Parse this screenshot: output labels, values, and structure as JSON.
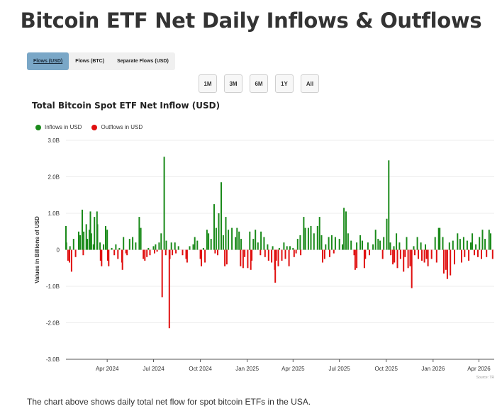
{
  "page": {
    "title": "Bitcoin ETF Net Daily Inflows & Outflows",
    "footer": "The chart above shows daily total net flow for spot bitcoin ETFs in the USA.",
    "source": "Source: TR"
  },
  "tabs": [
    {
      "label": "Flows (USD)",
      "active": true
    },
    {
      "label": "Flows (BTC)",
      "active": false
    },
    {
      "label": "Separate Flows (USD)",
      "active": false
    }
  ],
  "ranges": [
    "1M",
    "3M",
    "6M",
    "1Y",
    "All"
  ],
  "legend": [
    {
      "label": "Inflows in USD",
      "color": "#1a8a1a"
    },
    {
      "label": "Outflows in USD",
      "color": "#e01010"
    }
  ],
  "chart_data": {
    "type": "bar",
    "title": "Total Bitcoin Spot ETF Net Inflow (USD)",
    "ylabel": "Values in Billions of USD",
    "xlabel": "",
    "ylim": [
      -3.0,
      3.0
    ],
    "y_ticks": [
      "3.0B",
      "2.0B",
      "1.0B",
      "0",
      "-1.0B",
      "-2.0B",
      "-3.0B"
    ],
    "y_tick_values": [
      3,
      2,
      1,
      0,
      -1,
      -2,
      -3
    ],
    "x_range": [
      "2024-01-11",
      "2026-05-01"
    ],
    "x_ticks": [
      {
        "date": "2024-04-01",
        "label": "Apr 2024"
      },
      {
        "date": "2024-07-01",
        "label": "Jul 2024"
      },
      {
        "date": "2024-10-01",
        "label": "Oct 2024"
      },
      {
        "date": "2025-01-01",
        "label": "Jan 2025"
      },
      {
        "date": "2025-04-01",
        "label": "Apr 2025"
      },
      {
        "date": "2025-07-01",
        "label": "Jul 2025"
      },
      {
        "date": "2025-10-01",
        "label": "Oct 2025"
      },
      {
        "date": "2026-01-01",
        "label": "Jan 2026"
      },
      {
        "date": "2026-04-01",
        "label": "Apr 2026"
      }
    ],
    "grid": true,
    "legend_position": "top-left",
    "series": [
      {
        "name": "Inflows in USD",
        "color": "#1a8a1a",
        "points": [
          [
            "2024-01-11",
            0.65
          ],
          [
            "2024-01-12",
            0.2
          ],
          [
            "2024-01-19",
            0.1
          ],
          [
            "2024-01-26",
            0.3
          ],
          [
            "2024-02-05",
            0.5
          ],
          [
            "2024-02-08",
            0.4
          ],
          [
            "2024-02-12",
            1.1
          ],
          [
            "2024-02-15",
            0.5
          ],
          [
            "2024-02-20",
            0.7
          ],
          [
            "2024-02-22",
            0.3
          ],
          [
            "2024-02-26",
            0.55
          ],
          [
            "2024-02-28",
            1.05
          ],
          [
            "2024-03-01",
            0.45
          ],
          [
            "2024-03-05",
            0.15
          ],
          [
            "2024-03-07",
            0.9
          ],
          [
            "2024-03-12",
            1.05
          ],
          [
            "2024-03-13",
            0.7
          ],
          [
            "2024-03-18",
            0.2
          ],
          [
            "2024-03-25",
            0.15
          ],
          [
            "2024-03-29",
            0.65
          ],
          [
            "2024-04-01",
            0.55
          ],
          [
            "2024-04-10",
            0.05
          ],
          [
            "2024-04-18",
            0.15
          ],
          [
            "2024-04-25",
            0.05
          ],
          [
            "2024-05-03",
            0.35
          ],
          [
            "2024-05-15",
            0.3
          ],
          [
            "2024-05-21",
            0.35
          ],
          [
            "2024-05-27",
            0.2
          ],
          [
            "2024-06-03",
            0.9
          ],
          [
            "2024-06-06",
            0.6
          ],
          [
            "2024-06-21",
            0.05
          ],
          [
            "2024-07-01",
            0.1
          ],
          [
            "2024-07-05",
            0.15
          ],
          [
            "2024-07-12",
            0.2
          ],
          [
            "2024-07-16",
            0.45
          ],
          [
            "2024-07-22",
            2.55
          ],
          [
            "2024-07-26",
            0.25
          ],
          [
            "2024-08-05",
            0.2
          ],
          [
            "2024-08-12",
            0.2
          ],
          [
            "2024-08-19",
            0.1
          ],
          [
            "2024-09-10",
            0.1
          ],
          [
            "2024-09-17",
            0.15
          ],
          [
            "2024-09-20",
            0.35
          ],
          [
            "2024-09-25",
            0.25
          ],
          [
            "2024-10-07",
            0.05
          ],
          [
            "2024-10-14",
            0.55
          ],
          [
            "2024-10-17",
            0.45
          ],
          [
            "2024-10-22",
            0.3
          ],
          [
            "2024-10-28",
            1.25
          ],
          [
            "2024-11-01",
            0.6
          ],
          [
            "2024-11-06",
            1.0
          ],
          [
            "2024-11-11",
            1.85
          ],
          [
            "2024-11-15",
            0.4
          ],
          [
            "2024-11-20",
            0.9
          ],
          [
            "2024-11-25",
            0.55
          ],
          [
            "2024-12-02",
            0.6
          ],
          [
            "2024-12-09",
            0.35
          ],
          [
            "2024-12-12",
            0.6
          ],
          [
            "2024-12-16",
            0.5
          ],
          [
            "2024-12-20",
            0.3
          ],
          [
            "2025-01-06",
            0.5
          ],
          [
            "2025-01-13",
            0.3
          ],
          [
            "2025-01-17",
            0.55
          ],
          [
            "2025-01-22",
            0.2
          ],
          [
            "2025-01-28",
            0.5
          ],
          [
            "2025-02-03",
            0.35
          ],
          [
            "2025-02-10",
            0.15
          ],
          [
            "2025-02-20",
            0.1
          ],
          [
            "2025-03-05",
            0.05
          ],
          [
            "2025-03-14",
            0.2
          ],
          [
            "2025-03-20",
            0.1
          ],
          [
            "2025-03-26",
            0.1
          ],
          [
            "2025-04-01",
            0.05
          ],
          [
            "2025-04-10",
            0.3
          ],
          [
            "2025-04-15",
            0.4
          ],
          [
            "2025-04-22",
            0.9
          ],
          [
            "2025-04-25",
            0.6
          ],
          [
            "2025-05-01",
            0.6
          ],
          [
            "2025-05-06",
            0.65
          ],
          [
            "2025-05-12",
            0.45
          ],
          [
            "2025-05-19",
            0.65
          ],
          [
            "2025-05-23",
            0.9
          ],
          [
            "2025-05-27",
            0.4
          ],
          [
            "2025-06-04",
            0.15
          ],
          [
            "2025-06-10",
            0.35
          ],
          [
            "2025-06-16",
            0.4
          ],
          [
            "2025-06-23",
            0.35
          ],
          [
            "2025-07-01",
            0.3
          ],
          [
            "2025-07-07",
            0.15
          ],
          [
            "2025-07-10",
            1.15
          ],
          [
            "2025-07-14",
            1.05
          ],
          [
            "2025-07-18",
            0.45
          ],
          [
            "2025-07-24",
            0.25
          ],
          [
            "2025-08-04",
            0.2
          ],
          [
            "2025-08-11",
            0.4
          ],
          [
            "2025-08-15",
            0.25
          ],
          [
            "2025-08-26",
            0.2
          ],
          [
            "2025-09-05",
            0.15
          ],
          [
            "2025-09-10",
            0.55
          ],
          [
            "2025-09-15",
            0.3
          ],
          [
            "2025-09-19",
            0.25
          ],
          [
            "2025-09-26",
            0.35
          ],
          [
            "2025-10-02",
            0.85
          ],
          [
            "2025-10-06",
            2.45
          ],
          [
            "2025-10-09",
            0.2
          ],
          [
            "2025-10-16",
            0.1
          ],
          [
            "2025-10-21",
            0.45
          ],
          [
            "2025-10-27",
            0.2
          ],
          [
            "2025-11-10",
            0.35
          ],
          [
            "2025-11-24",
            0.1
          ],
          [
            "2025-12-01",
            0.35
          ],
          [
            "2025-12-08",
            0.2
          ],
          [
            "2025-12-17",
            0.15
          ],
          [
            "2026-01-05",
            0.35
          ],
          [
            "2026-01-12",
            0.6
          ],
          [
            "2026-01-14",
            0.6
          ],
          [
            "2026-01-20",
            0.35
          ],
          [
            "2026-02-02",
            0.2
          ],
          [
            "2026-02-09",
            0.25
          ],
          [
            "2026-02-18",
            0.45
          ],
          [
            "2026-02-23",
            0.3
          ],
          [
            "2026-03-02",
            0.35
          ],
          [
            "2026-03-09",
            0.25
          ],
          [
            "2026-03-16",
            0.2
          ],
          [
            "2026-03-19",
            0.45
          ],
          [
            "2026-03-26",
            0.15
          ],
          [
            "2026-04-02",
            0.35
          ],
          [
            "2026-04-08",
            0.55
          ],
          [
            "2026-04-13",
            0.3
          ],
          [
            "2026-04-21",
            0.55
          ],
          [
            "2026-04-24",
            0.45
          ]
        ]
      },
      {
        "name": "Outflows in USD",
        "color": "#e01010",
        "points": [
          [
            "2024-01-15",
            -0.3
          ],
          [
            "2024-01-18",
            -0.35
          ],
          [
            "2024-01-22",
            -0.6
          ],
          [
            "2024-01-30",
            -0.2
          ],
          [
            "2024-02-14",
            -0.15
          ],
          [
            "2024-03-19",
            -0.3
          ],
          [
            "2024-03-20",
            -0.2
          ],
          [
            "2024-03-21",
            -0.45
          ],
          [
            "2024-04-02",
            -0.3
          ],
          [
            "2024-04-04",
            -0.45
          ],
          [
            "2024-04-15",
            -0.15
          ],
          [
            "2024-04-22",
            -0.25
          ],
          [
            "2024-04-30",
            -0.35
          ],
          [
            "2024-05-01",
            -0.55
          ],
          [
            "2024-05-08",
            -0.1
          ],
          [
            "2024-05-10",
            -0.15
          ],
          [
            "2024-06-11",
            -0.25
          ],
          [
            "2024-06-14",
            -0.3
          ],
          [
            "2024-06-18",
            -0.2
          ],
          [
            "2024-06-24",
            -0.15
          ],
          [
            "2024-07-03",
            -0.1
          ],
          [
            "2024-07-08",
            -0.05
          ],
          [
            "2024-07-18",
            -1.3
          ],
          [
            "2024-07-25",
            -0.15
          ],
          [
            "2024-08-01",
            -2.15
          ],
          [
            "2024-08-02",
            -0.25
          ],
          [
            "2024-08-07",
            -0.15
          ],
          [
            "2024-08-14",
            -0.1
          ],
          [
            "2024-08-27",
            -0.15
          ],
          [
            "2024-09-03",
            -0.25
          ],
          [
            "2024-09-05",
            -0.35
          ],
          [
            "2024-10-01",
            -0.25
          ],
          [
            "2024-10-03",
            -0.45
          ],
          [
            "2024-10-10",
            -0.35
          ],
          [
            "2024-10-30",
            -0.1
          ],
          [
            "2024-11-04",
            -0.15
          ],
          [
            "2024-11-18",
            -0.45
          ],
          [
            "2024-11-22",
            -0.4
          ],
          [
            "2024-12-19",
            -0.45
          ],
          [
            "2024-12-24",
            -0.5
          ],
          [
            "2024-12-27",
            -0.2
          ],
          [
            "2025-01-02",
            -0.5
          ],
          [
            "2025-01-08",
            -0.55
          ],
          [
            "2025-01-10",
            -0.3
          ],
          [
            "2025-01-27",
            -0.15
          ],
          [
            "2025-02-05",
            -0.2
          ],
          [
            "2025-02-12",
            -0.3
          ],
          [
            "2025-02-18",
            -0.35
          ],
          [
            "2025-02-24",
            -0.55
          ],
          [
            "2025-02-25",
            -0.9
          ],
          [
            "2025-02-27",
            -0.3
          ],
          [
            "2025-03-03",
            -0.45
          ],
          [
            "2025-03-10",
            -0.3
          ],
          [
            "2025-03-17",
            -0.25
          ],
          [
            "2025-03-24",
            -0.45
          ],
          [
            "2025-04-03",
            -0.2
          ],
          [
            "2025-04-07",
            -0.1
          ],
          [
            "2025-04-16",
            -0.15
          ],
          [
            "2025-05-29",
            -0.35
          ],
          [
            "2025-06-02",
            -0.25
          ],
          [
            "2025-06-12",
            -0.2
          ],
          [
            "2025-06-20",
            -0.1
          ],
          [
            "2025-07-30",
            -0.15
          ],
          [
            "2025-08-01",
            -0.55
          ],
          [
            "2025-08-04",
            -0.5
          ],
          [
            "2025-08-19",
            -0.5
          ],
          [
            "2025-08-21",
            -0.25
          ],
          [
            "2025-08-29",
            -0.15
          ],
          [
            "2025-09-24",
            -0.25
          ],
          [
            "2025-10-10",
            -0.15
          ],
          [
            "2025-10-14",
            -0.4
          ],
          [
            "2025-10-17",
            -0.35
          ],
          [
            "2025-10-23",
            -0.5
          ],
          [
            "2025-10-29",
            -0.25
          ],
          [
            "2025-11-04",
            -0.6
          ],
          [
            "2025-11-07",
            -0.2
          ],
          [
            "2025-11-13",
            -0.5
          ],
          [
            "2025-11-17",
            -0.45
          ],
          [
            "2025-11-20",
            -1.05
          ],
          [
            "2025-11-26",
            -0.15
          ],
          [
            "2025-12-03",
            -0.25
          ],
          [
            "2025-12-10",
            -0.3
          ],
          [
            "2025-12-15",
            -0.35
          ],
          [
            "2025-12-19",
            -0.25
          ],
          [
            "2025-12-22",
            -0.45
          ],
          [
            "2025-12-29",
            -0.25
          ],
          [
            "2026-01-08",
            -0.35
          ],
          [
            "2026-01-22",
            -0.65
          ],
          [
            "2026-01-26",
            -0.55
          ],
          [
            "2026-01-29",
            -0.8
          ],
          [
            "2026-02-04",
            -0.7
          ],
          [
            "2026-02-12",
            -0.4
          ],
          [
            "2026-02-26",
            -0.35
          ],
          [
            "2026-03-04",
            -0.2
          ],
          [
            "2026-03-12",
            -0.3
          ],
          [
            "2026-03-23",
            -0.15
          ],
          [
            "2026-03-30",
            -0.2
          ],
          [
            "2026-04-06",
            -0.25
          ],
          [
            "2026-04-16",
            -0.2
          ],
          [
            "2026-04-28",
            -0.25
          ]
        ]
      }
    ]
  }
}
